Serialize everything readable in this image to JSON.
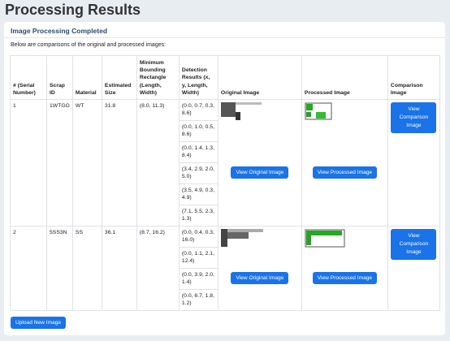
{
  "title": "Processing Results",
  "card": {
    "heading": "Image Processing Completed",
    "description": "Below are comparisons of the original and processed images:",
    "table": {
      "headers": [
        "# (Serial Number)",
        "Scrap ID",
        "Material",
        "Estimated Size",
        "Minimum Bounding Rectangle (Length, Width)",
        "Detection Results (x, y, Length, Width)",
        "Original Image",
        "Processed Image",
        "Comparison Image"
      ],
      "rows": [
        {
          "serial": 1,
          "scrap_id": "1WTGG",
          "material": "WT",
          "estimated_size": 31.8,
          "bounding_rectangle": "(8.0, 11.3)",
          "detection_results": [
            "(0.0, 0.7, 0.3, 8.6)",
            "(0.0, 1.0, 0.5, 8.6)",
            "(0.0, 1.4, 1.3, 8.4)",
            "(3.4, 2.9, 2.0, 5.0)",
            "(3.5, 4.9, 0.3, 4.9)",
            "(7.1, 5.5, 2.3, 1.3)"
          ],
          "original_button": "View Original Image",
          "processed_button": "View Processed Image",
          "comparison_button": "View Comparison Image"
        },
        {
          "serial": 2,
          "scrap_id": "5SS3N",
          "material": "SS",
          "estimated_size": 36.1,
          "bounding_rectangle": "(8.7, 16.2)",
          "detection_results": [
            "(0.0, 0.4, 0.3, 16.0)",
            "(0.0, 1.1, 2.1, 12.4)",
            "(0.0, 3.9, 2.0, 1.4)",
            "(0.0, 6.7, 1.8, 1.2)"
          ],
          "original_button": "View Original Image",
          "processed_button": "View Processed Image",
          "comparison_button": "View Comparison Image"
        }
      ]
    }
  },
  "upload_button": "Upload New Image"
}
